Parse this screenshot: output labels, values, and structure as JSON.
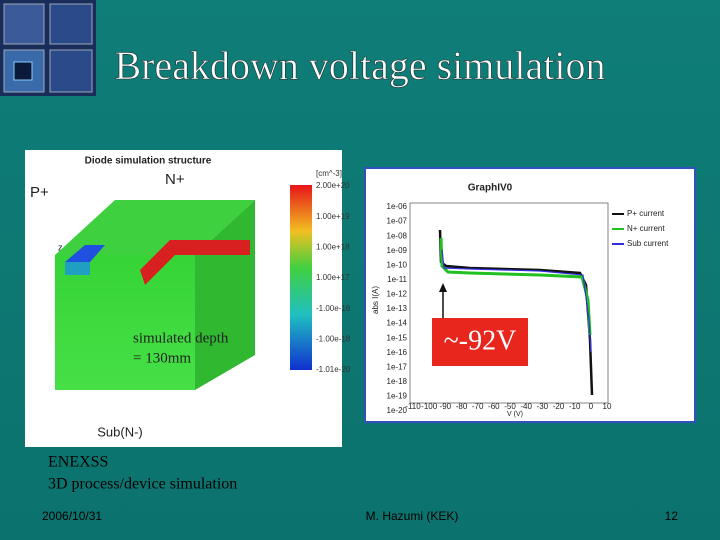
{
  "title": "Breakdown voltage simulation",
  "structure_image": {
    "title": "Diode simulation structure",
    "p_label": "P+",
    "n_label": "N+",
    "sub_label": "Sub(N-)",
    "axis_label": "z",
    "colorbar_unit": "[cm^-3]",
    "colorbar_labels": [
      "2.00e+20",
      "1.00e+19",
      "1.00e+18",
      "1.00e+17",
      "-1.00e-16",
      "-1.00e-18",
      "-1.01e-20"
    ]
  },
  "depth_note": [
    "simulated depth",
    "= 130mm"
  ],
  "graph_image": {
    "title": "GraphIV0",
    "y_label": "abs I(A)",
    "x_label": "V (V)",
    "y_ticks": [
      "1e-06",
      "1e-07",
      "1e-08",
      "1e-09",
      "1e-10",
      "1e-11",
      "1e-12",
      "1e-13",
      "1e-14",
      "1e-15",
      "1e-16",
      "1e-17",
      "1e-18",
      "1e-19",
      "1e-20"
    ],
    "x_ticks": [
      "-110",
      "-100",
      "-90",
      "-80",
      "-70",
      "-60",
      "-50",
      "-40",
      "-30",
      "-20",
      "-10",
      "0",
      "10"
    ],
    "legend": [
      "P+ current",
      "N+ current",
      "Sub current"
    ]
  },
  "voltage_note": "~-92V",
  "body": [
    "ENEXSS",
    "3D process/device simulation"
  ],
  "footer": {
    "date": "2006/10/31",
    "author": "M. Hazumi (KEK)",
    "page": "12"
  }
}
